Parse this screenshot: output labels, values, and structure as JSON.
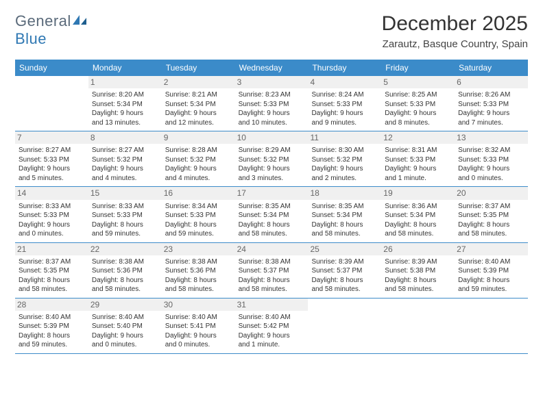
{
  "logo": {
    "text_general": "General",
    "text_blue": "Blue"
  },
  "header": {
    "month_title": "December 2025",
    "location": "Zarautz, Basque Country, Spain"
  },
  "style": {
    "header_bg": "#3b8bc9",
    "header_text": "#ffffff",
    "border_color": "#3b8bc9",
    "daynum_bg": "#f0f0f0",
    "daynum_color": "#666666",
    "body_text": "#333333",
    "title_fontsize": 30,
    "location_fontsize": 15,
    "weekday_fontsize": 12,
    "daynum_fontsize": 12,
    "info_fontsize": 10
  },
  "weekdays": [
    "Sunday",
    "Monday",
    "Tuesday",
    "Wednesday",
    "Thursday",
    "Friday",
    "Saturday"
  ],
  "weeks": [
    [
      {
        "n": "",
        "sr": "",
        "ss": "",
        "dl1": "",
        "dl2": ""
      },
      {
        "n": "1",
        "sr": "Sunrise: 8:20 AM",
        "ss": "Sunset: 5:34 PM",
        "dl1": "Daylight: 9 hours",
        "dl2": "and 13 minutes."
      },
      {
        "n": "2",
        "sr": "Sunrise: 8:21 AM",
        "ss": "Sunset: 5:34 PM",
        "dl1": "Daylight: 9 hours",
        "dl2": "and 12 minutes."
      },
      {
        "n": "3",
        "sr": "Sunrise: 8:23 AM",
        "ss": "Sunset: 5:33 PM",
        "dl1": "Daylight: 9 hours",
        "dl2": "and 10 minutes."
      },
      {
        "n": "4",
        "sr": "Sunrise: 8:24 AM",
        "ss": "Sunset: 5:33 PM",
        "dl1": "Daylight: 9 hours",
        "dl2": "and 9 minutes."
      },
      {
        "n": "5",
        "sr": "Sunrise: 8:25 AM",
        "ss": "Sunset: 5:33 PM",
        "dl1": "Daylight: 9 hours",
        "dl2": "and 8 minutes."
      },
      {
        "n": "6",
        "sr": "Sunrise: 8:26 AM",
        "ss": "Sunset: 5:33 PM",
        "dl1": "Daylight: 9 hours",
        "dl2": "and 7 minutes."
      }
    ],
    [
      {
        "n": "7",
        "sr": "Sunrise: 8:27 AM",
        "ss": "Sunset: 5:33 PM",
        "dl1": "Daylight: 9 hours",
        "dl2": "and 5 minutes."
      },
      {
        "n": "8",
        "sr": "Sunrise: 8:27 AM",
        "ss": "Sunset: 5:32 PM",
        "dl1": "Daylight: 9 hours",
        "dl2": "and 4 minutes."
      },
      {
        "n": "9",
        "sr": "Sunrise: 8:28 AM",
        "ss": "Sunset: 5:32 PM",
        "dl1": "Daylight: 9 hours",
        "dl2": "and 4 minutes."
      },
      {
        "n": "10",
        "sr": "Sunrise: 8:29 AM",
        "ss": "Sunset: 5:32 PM",
        "dl1": "Daylight: 9 hours",
        "dl2": "and 3 minutes."
      },
      {
        "n": "11",
        "sr": "Sunrise: 8:30 AM",
        "ss": "Sunset: 5:32 PM",
        "dl1": "Daylight: 9 hours",
        "dl2": "and 2 minutes."
      },
      {
        "n": "12",
        "sr": "Sunrise: 8:31 AM",
        "ss": "Sunset: 5:33 PM",
        "dl1": "Daylight: 9 hours",
        "dl2": "and 1 minute."
      },
      {
        "n": "13",
        "sr": "Sunrise: 8:32 AM",
        "ss": "Sunset: 5:33 PM",
        "dl1": "Daylight: 9 hours",
        "dl2": "and 0 minutes."
      }
    ],
    [
      {
        "n": "14",
        "sr": "Sunrise: 8:33 AM",
        "ss": "Sunset: 5:33 PM",
        "dl1": "Daylight: 9 hours",
        "dl2": "and 0 minutes."
      },
      {
        "n": "15",
        "sr": "Sunrise: 8:33 AM",
        "ss": "Sunset: 5:33 PM",
        "dl1": "Daylight: 8 hours",
        "dl2": "and 59 minutes."
      },
      {
        "n": "16",
        "sr": "Sunrise: 8:34 AM",
        "ss": "Sunset: 5:33 PM",
        "dl1": "Daylight: 8 hours",
        "dl2": "and 59 minutes."
      },
      {
        "n": "17",
        "sr": "Sunrise: 8:35 AM",
        "ss": "Sunset: 5:34 PM",
        "dl1": "Daylight: 8 hours",
        "dl2": "and 58 minutes."
      },
      {
        "n": "18",
        "sr": "Sunrise: 8:35 AM",
        "ss": "Sunset: 5:34 PM",
        "dl1": "Daylight: 8 hours",
        "dl2": "and 58 minutes."
      },
      {
        "n": "19",
        "sr": "Sunrise: 8:36 AM",
        "ss": "Sunset: 5:34 PM",
        "dl1": "Daylight: 8 hours",
        "dl2": "and 58 minutes."
      },
      {
        "n": "20",
        "sr": "Sunrise: 8:37 AM",
        "ss": "Sunset: 5:35 PM",
        "dl1": "Daylight: 8 hours",
        "dl2": "and 58 minutes."
      }
    ],
    [
      {
        "n": "21",
        "sr": "Sunrise: 8:37 AM",
        "ss": "Sunset: 5:35 PM",
        "dl1": "Daylight: 8 hours",
        "dl2": "and 58 minutes."
      },
      {
        "n": "22",
        "sr": "Sunrise: 8:38 AM",
        "ss": "Sunset: 5:36 PM",
        "dl1": "Daylight: 8 hours",
        "dl2": "and 58 minutes."
      },
      {
        "n": "23",
        "sr": "Sunrise: 8:38 AM",
        "ss": "Sunset: 5:36 PM",
        "dl1": "Daylight: 8 hours",
        "dl2": "and 58 minutes."
      },
      {
        "n": "24",
        "sr": "Sunrise: 8:38 AM",
        "ss": "Sunset: 5:37 PM",
        "dl1": "Daylight: 8 hours",
        "dl2": "and 58 minutes."
      },
      {
        "n": "25",
        "sr": "Sunrise: 8:39 AM",
        "ss": "Sunset: 5:37 PM",
        "dl1": "Daylight: 8 hours",
        "dl2": "and 58 minutes."
      },
      {
        "n": "26",
        "sr": "Sunrise: 8:39 AM",
        "ss": "Sunset: 5:38 PM",
        "dl1": "Daylight: 8 hours",
        "dl2": "and 58 minutes."
      },
      {
        "n": "27",
        "sr": "Sunrise: 8:40 AM",
        "ss": "Sunset: 5:39 PM",
        "dl1": "Daylight: 8 hours",
        "dl2": "and 59 minutes."
      }
    ],
    [
      {
        "n": "28",
        "sr": "Sunrise: 8:40 AM",
        "ss": "Sunset: 5:39 PM",
        "dl1": "Daylight: 8 hours",
        "dl2": "and 59 minutes."
      },
      {
        "n": "29",
        "sr": "Sunrise: 8:40 AM",
        "ss": "Sunset: 5:40 PM",
        "dl1": "Daylight: 9 hours",
        "dl2": "and 0 minutes."
      },
      {
        "n": "30",
        "sr": "Sunrise: 8:40 AM",
        "ss": "Sunset: 5:41 PM",
        "dl1": "Daylight: 9 hours",
        "dl2": "and 0 minutes."
      },
      {
        "n": "31",
        "sr": "Sunrise: 8:40 AM",
        "ss": "Sunset: 5:42 PM",
        "dl1": "Daylight: 9 hours",
        "dl2": "and 1 minute."
      },
      {
        "n": "",
        "sr": "",
        "ss": "",
        "dl1": "",
        "dl2": ""
      },
      {
        "n": "",
        "sr": "",
        "ss": "",
        "dl1": "",
        "dl2": ""
      },
      {
        "n": "",
        "sr": "",
        "ss": "",
        "dl1": "",
        "dl2": ""
      }
    ]
  ]
}
